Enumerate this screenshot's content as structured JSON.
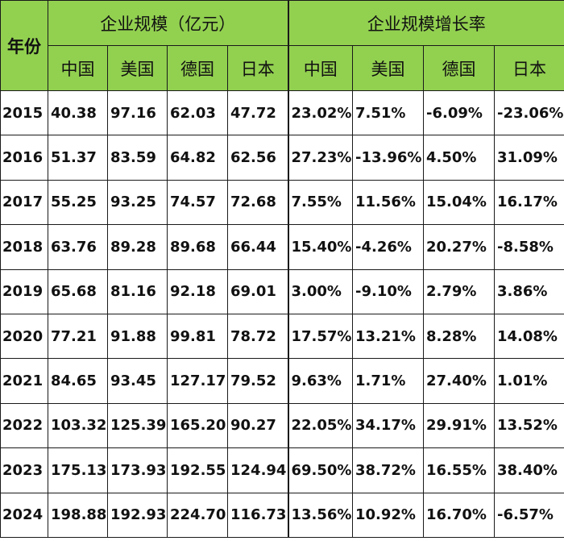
{
  "header": {
    "year_label": "年份",
    "scale_group": "企业规模（亿元）",
    "growth_group": "企业规模增长率",
    "countries": [
      "中国",
      "美国",
      "德国",
      "日本"
    ]
  },
  "rows": [
    {
      "year": "2015",
      "scale": [
        "40.38",
        "97.16",
        "62.03",
        "47.72"
      ],
      "growth": [
        "23.02%",
        "7.51%",
        "-6.09%",
        "-23.06%"
      ]
    },
    {
      "year": "2016",
      "scale": [
        "51.37",
        "83.59",
        "64.82",
        "62.56"
      ],
      "growth": [
        "27.23%",
        "-13.96%",
        "4.50%",
        "31.09%"
      ]
    },
    {
      "year": "2017",
      "scale": [
        "55.25",
        "93.25",
        "74.57",
        "72.68"
      ],
      "growth": [
        "7.55%",
        "11.56%",
        "15.04%",
        "16.17%"
      ]
    },
    {
      "year": "2018",
      "scale": [
        "63.76",
        "89.28",
        "89.68",
        "66.44"
      ],
      "growth": [
        "15.40%",
        "-4.26%",
        "20.27%",
        "-8.58%"
      ]
    },
    {
      "year": "2019",
      "scale": [
        "65.68",
        "81.16",
        "92.18",
        "69.01"
      ],
      "growth": [
        "3.00%",
        "-9.10%",
        "2.79%",
        "3.86%"
      ]
    },
    {
      "year": "2020",
      "scale": [
        "77.21",
        "91.88",
        "99.81",
        "78.72"
      ],
      "growth": [
        "17.57%",
        "13.21%",
        "8.28%",
        "14.08%"
      ]
    },
    {
      "year": "2021",
      "scale": [
        "84.65",
        "93.45",
        "127.17",
        "79.52"
      ],
      "growth": [
        "9.63%",
        "1.71%",
        "27.40%",
        "1.01%"
      ]
    },
    {
      "year": "2022",
      "scale": [
        "103.32",
        "125.39",
        "165.20",
        "90.27"
      ],
      "growth": [
        "22.05%",
        "34.17%",
        "29.91%",
        "13.52%"
      ]
    },
    {
      "year": "2023",
      "scale": [
        "175.13",
        "173.93",
        "192.55",
        "124.94"
      ],
      "growth": [
        "69.50%",
        "38.72%",
        "16.55%",
        "38.40%"
      ]
    },
    {
      "year": "2024",
      "scale": [
        "198.88",
        "192.93",
        "224.70",
        "116.73"
      ],
      "growth": [
        "13.56%",
        "10.92%",
        "16.70%",
        "-6.57%"
      ]
    }
  ]
}
